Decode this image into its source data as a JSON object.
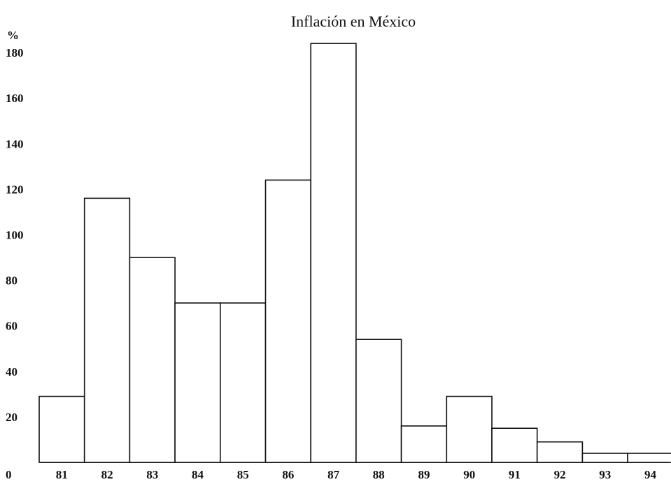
{
  "chart_data": {
    "type": "bar",
    "title": "Inflación en México",
    "ylabel": "%",
    "xlabel": "",
    "categories": [
      "81",
      "82",
      "83",
      "84",
      "85",
      "86",
      "87",
      "88",
      "89",
      "90",
      "91",
      "92",
      "93",
      "94"
    ],
    "values": [
      29,
      116,
      90,
      70,
      70,
      124,
      184,
      54,
      16,
      29,
      15,
      9,
      4,
      4
    ],
    "y_ticks": [
      "0",
      "20",
      "40",
      "60",
      "80",
      "100",
      "120",
      "140",
      "160",
      "180"
    ],
    "ylim": [
      0,
      184
    ],
    "grid": false,
    "legend": "none",
    "colors": {
      "bar_fill": "#ffffff",
      "bar_stroke": "#111111"
    }
  }
}
